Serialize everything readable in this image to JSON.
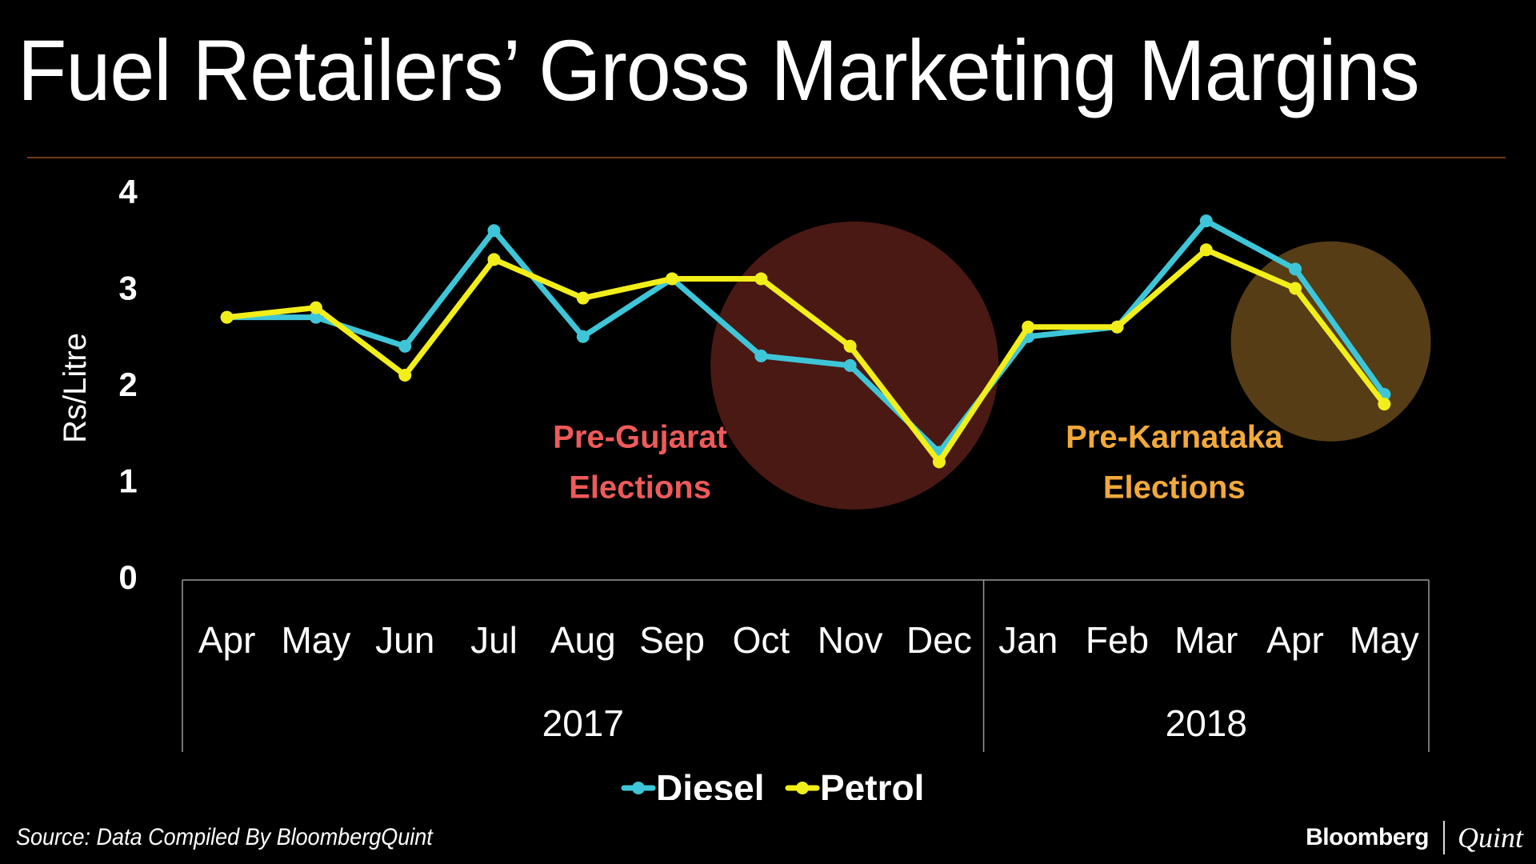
{
  "title": "Fuel Retailers’ Gross Marketing Margins",
  "source": "Source: Data Compiled By BloombergQuint",
  "brand": {
    "left": "Bloomberg",
    "right": "Quint"
  },
  "colors": {
    "diesel": "#3ec6d8",
    "petrol": "#f2ee1a",
    "gujarat_zone": "#d84a3c",
    "karnataka_zone": "#f2a93b",
    "background": "#000000"
  },
  "chart_data": {
    "type": "line",
    "title": "Fuel Retailers’ Gross Marketing Margins",
    "ylabel": "Rs/Litre",
    "xlabel": "",
    "ylim": [
      0,
      4
    ],
    "yticks": [
      0,
      1,
      2,
      3,
      4
    ],
    "grid": false,
    "legend": "bottom-center",
    "categories": [
      "Apr",
      "May",
      "Jun",
      "Jul",
      "Aug",
      "Sep",
      "Oct",
      "Nov",
      "Dec",
      "Jan",
      "Feb",
      "Mar",
      "Apr",
      "May"
    ],
    "year_groups": [
      {
        "label": "2017",
        "start": 0,
        "end": 8
      },
      {
        "label": "2018",
        "start": 9,
        "end": 13
      }
    ],
    "series": [
      {
        "name": "Diesel",
        "color": "#3ec6d8",
        "values": [
          2.7,
          2.7,
          2.4,
          3.6,
          2.5,
          3.1,
          2.3,
          2.2,
          1.3,
          2.5,
          2.6,
          3.7,
          3.2,
          1.9
        ]
      },
      {
        "name": "Petrol",
        "color": "#f2ee1a",
        "values": [
          2.7,
          2.8,
          2.1,
          3.3,
          2.9,
          3.1,
          3.1,
          2.4,
          1.2,
          2.6,
          2.6,
          3.4,
          3.0,
          1.8
        ]
      }
    ],
    "annotations": [
      {
        "lines": [
          "Pre-Gujarat",
          "Elections"
        ],
        "color": "#ee5a5a",
        "category_index": 5,
        "y": 1.35
      },
      {
        "lines": [
          "Pre-Karnataka",
          "Elections"
        ],
        "color": "#f2a93b",
        "category_index": 11,
        "y": 1.35
      }
    ],
    "highlights": [
      {
        "label": "Pre-Gujarat Elections",
        "color": "#d84a3c",
        "center_category": 7.05,
        "center_y": 2.2
      },
      {
        "label": "Pre-Karnataka Elections",
        "color": "#f2a93b",
        "center_category": 12.4,
        "center_y": 2.45
      }
    ]
  }
}
